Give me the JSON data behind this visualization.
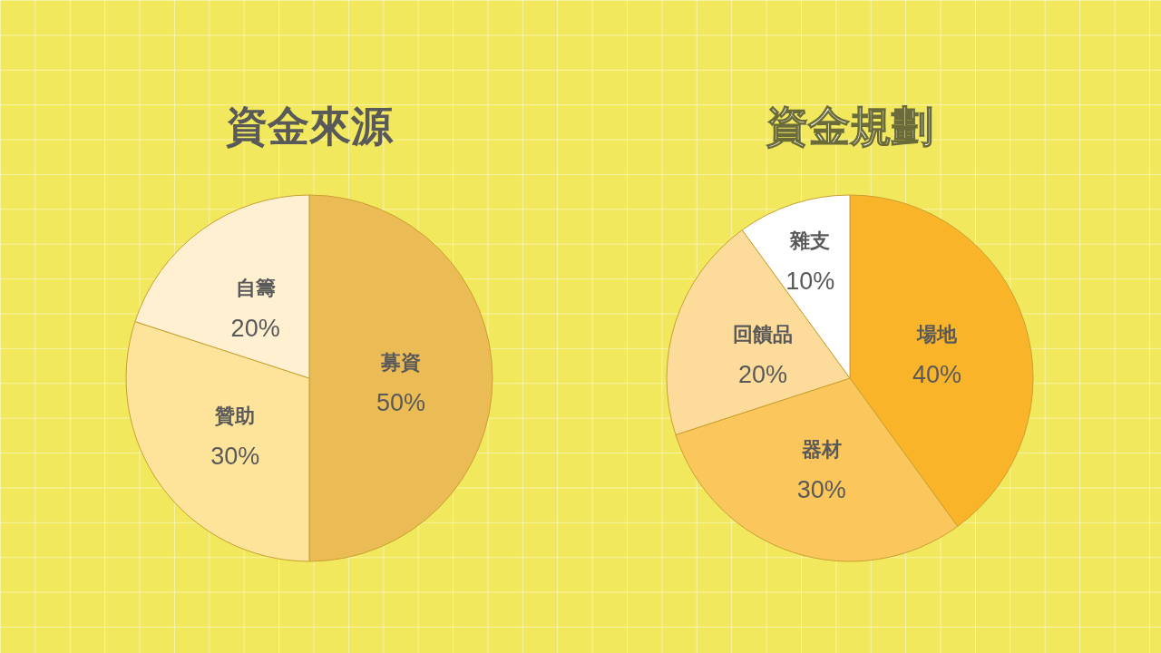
{
  "chart_data": [
    {
      "type": "pie",
      "title": "資金來源",
      "categories": [
        "募資",
        "贊助",
        "自籌"
      ],
      "values": [
        50,
        30,
        20
      ],
      "colors": [
        "#ebbb55",
        "#fee49a",
        "#fef0d0"
      ],
      "value_labels": [
        "50%",
        "30%",
        "20%"
      ]
    },
    {
      "type": "pie",
      "title": "資金規劃",
      "categories": [
        "場地",
        "器材",
        "回饋品",
        "雜支"
      ],
      "values": [
        40,
        30,
        20,
        10
      ],
      "colors": [
        "#f9b42a",
        "#fbc75c",
        "#fddb9a",
        "#ffffff"
      ],
      "value_labels": [
        "40%",
        "30%",
        "20%",
        "10%"
      ]
    }
  ]
}
